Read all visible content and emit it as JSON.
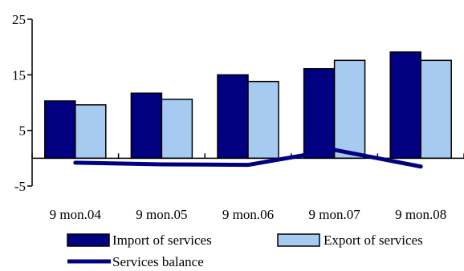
{
  "chart_data": {
    "type": "bar",
    "categories": [
      "9 mon.04",
      "9 mon.05",
      "9 mon.06",
      "9 mon.07",
      "9 mon.08"
    ],
    "series": [
      {
        "name": "Import of  services",
        "kind": "bar",
        "color": "#000080",
        "values": [
          10.3,
          11.7,
          15.0,
          16.1,
          19.1
        ]
      },
      {
        "name": "Export of  services",
        "kind": "bar",
        "color": "#a6caf0",
        "values": [
          9.6,
          10.6,
          13.8,
          17.6,
          17.6
        ]
      },
      {
        "name": "Services balance",
        "kind": "line",
        "color": "#000080",
        "values": [
          -0.8,
          -1.1,
          -1.2,
          1.5,
          -1.5
        ]
      }
    ],
    "ylim": [
      -5,
      25
    ],
    "yticks": [
      "25",
      "15",
      "5",
      "-5"
    ],
    "ytick_values": [
      25,
      15,
      5,
      -5
    ],
    "grid": false,
    "legend_position": "bottom"
  }
}
